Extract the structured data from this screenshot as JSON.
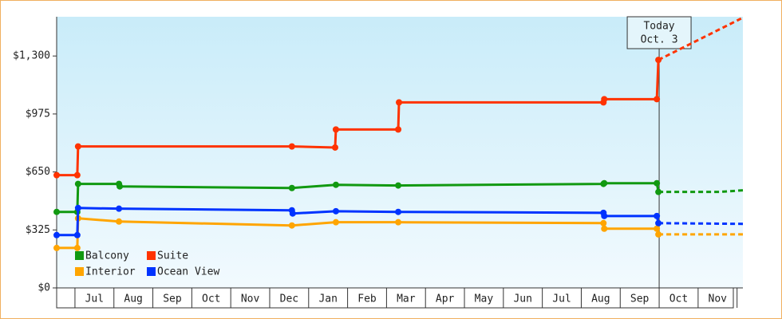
{
  "chart_data": {
    "type": "line",
    "yticks": [
      {
        "value": 0,
        "label": "$0"
      },
      {
        "value": 325,
        "label": "$325"
      },
      {
        "value": 650,
        "label": "$650"
      },
      {
        "value": 975,
        "label": "$975"
      },
      {
        "value": 1300,
        "label": "$1,300"
      }
    ],
    "ylim": [
      0,
      1520
    ],
    "xlim": [
      -0.47,
      17.15
    ],
    "xticks": [
      0,
      1,
      2,
      3,
      4,
      5,
      6,
      7,
      8,
      9,
      10,
      11,
      12,
      13,
      14,
      15,
      16,
      17
    ],
    "month_labels": [
      "Jul",
      "Aug",
      "Sep",
      "Oct",
      "Nov",
      "Dec",
      "Jan",
      "Feb",
      "Mar",
      "Apr",
      "May",
      "Jun",
      "Jul",
      "Aug",
      "Sep",
      "Oct",
      "Nov"
    ],
    "annotation": {
      "x": 15.0,
      "lines": [
        "Today",
        "Oct. 3"
      ]
    },
    "series": [
      {
        "name": "Balcony",
        "color": "#119911",
        "x": [
          -0.47,
          0.06,
          0.08,
          1.13,
          1.15,
          5.57,
          6.7,
          8.3,
          13.57,
          13.59,
          14.94,
          14.98
        ],
        "values": [
          426,
          426,
          583,
          583,
          569,
          560,
          578,
          574,
          583,
          587,
          587,
          538
        ],
        "forecast_x": [
          14.98,
          16.54,
          17.15
        ],
        "forecast_values": [
          538,
          538,
          547
        ]
      },
      {
        "name": "Suite",
        "color": "#ff3300",
        "x": [
          -0.47,
          0.06,
          0.08,
          5.57,
          6.68,
          6.7,
          8.3,
          8.32,
          13.57,
          13.59,
          14.94,
          14.98
        ],
        "values": [
          632,
          632,
          793,
          793,
          787,
          888,
          888,
          1040,
          1040,
          1058,
          1058,
          1278
        ],
        "forecast_x": [
          14.98,
          17.15
        ],
        "forecast_values": [
          1278,
          1515
        ]
      },
      {
        "name": "Interior",
        "color": "#ffa500",
        "x": [
          -0.47,
          0.06,
          0.08,
          1.13,
          5.57,
          6.7,
          8.3,
          13.57,
          13.59,
          14.94,
          14.98
        ],
        "values": [
          224,
          224,
          390,
          372,
          350,
          368,
          368,
          363,
          332,
          332,
          300
        ],
        "forecast_x": [
          14.98,
          17.15
        ],
        "forecast_values": [
          300,
          300
        ]
      },
      {
        "name": "Ocean View",
        "color": "#0033ff",
        "x": [
          -0.47,
          0.06,
          0.08,
          1.13,
          5.57,
          5.59,
          6.7,
          8.3,
          13.57,
          13.59,
          14.94,
          14.98
        ],
        "values": [
          296,
          296,
          448,
          444,
          435,
          417,
          430,
          426,
          421,
          403,
          403,
          363
        ],
        "forecast_x": [
          14.98,
          17.15
        ],
        "forecast_values": [
          363,
          359
        ]
      }
    ]
  }
}
